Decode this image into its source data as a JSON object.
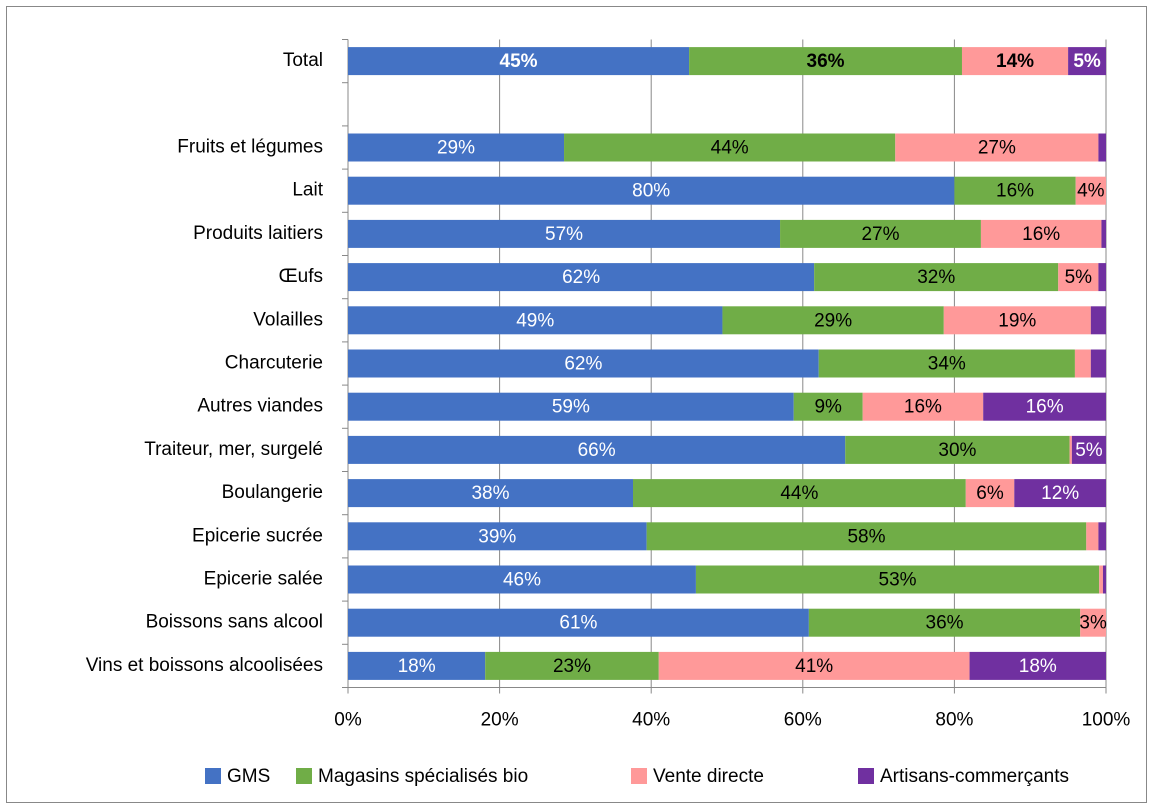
{
  "chart_data": {
    "type": "stacked-bar-horizontal",
    "categories": [
      "Total",
      null,
      "Fruits et légumes",
      "Lait",
      "Produits laitiers",
      "Œufs",
      "Volailles",
      "Charcuterie",
      "Autres viandes",
      "Traiteur, mer, surgelé",
      "Boulangerie",
      "Epicerie sucrée",
      "Epicerie salée",
      "Boissons sans alcool",
      "Vins et boissons alcoolisées"
    ],
    "series": [
      {
        "name": "GMS",
        "color": "#4472c4",
        "label_color": "#ffffff",
        "values": [
          45,
          null,
          28.5,
          80,
          57,
          61.5,
          49.4,
          62.1,
          58.8,
          65.6,
          37.6,
          39.4,
          45.9,
          60.8,
          18.1
        ],
        "value_labels": [
          "45%",
          null,
          "29%",
          "80%",
          "57%",
          "62%",
          "49%",
          "62%",
          "59%",
          "66%",
          "38%",
          "39%",
          "46%",
          "61%",
          "18%"
        ]
      },
      {
        "name": "Magasins spécialisés bio",
        "color": "#70ad47",
        "label_color": "#000000",
        "values": [
          36,
          null,
          43.7,
          16,
          26.5,
          32.2,
          29.2,
          33.8,
          9.1,
          29.6,
          43.9,
          58,
          53.2,
          35.8,
          22.9
        ],
        "value_labels": [
          "36%",
          null,
          "44%",
          "16%",
          "27%",
          "32%",
          "29%",
          "34%",
          "9%",
          "30%",
          "44%",
          "58%",
          "53%",
          "36%",
          "23%"
        ]
      },
      {
        "name": "Vente directe",
        "color": "#ff9999",
        "label_color": "#000000",
        "values": [
          14,
          null,
          26.8,
          4,
          15.9,
          5.3,
          19.4,
          2.1,
          15.9,
          0.3,
          6.4,
          1.6,
          0.5,
          3.4,
          41
        ],
        "value_labels": [
          "14%",
          null,
          "27%",
          "4%",
          "16%",
          "5%",
          "19%",
          null,
          "16%",
          null,
          "6%",
          null,
          null,
          "3%",
          "41%"
        ]
      },
      {
        "name": "Artisans-commerçants",
        "color": "#7030a0",
        "label_color": "#ffffff",
        "values": [
          5,
          null,
          1,
          null,
          0.6,
          1,
          2,
          2,
          16.2,
          4.5,
          12.1,
          1,
          0.4,
          null,
          18
        ],
        "value_labels": [
          "5%",
          null,
          null,
          null,
          null,
          null,
          null,
          null,
          "16%",
          "5%",
          "12%",
          null,
          null,
          null,
          "18%"
        ]
      }
    ],
    "bold_categories": [
      "Total"
    ],
    "xlim": [
      0,
      100
    ],
    "xticks": [
      {
        "value": 0,
        "label": "0%"
      },
      {
        "value": 20,
        "label": "20%"
      },
      {
        "value": 40,
        "label": "40%"
      },
      {
        "value": 60,
        "label": "60%"
      },
      {
        "value": 80,
        "label": "80%"
      },
      {
        "value": 100,
        "label": "100%"
      }
    ],
    "grid": true,
    "legend": "bottom"
  }
}
